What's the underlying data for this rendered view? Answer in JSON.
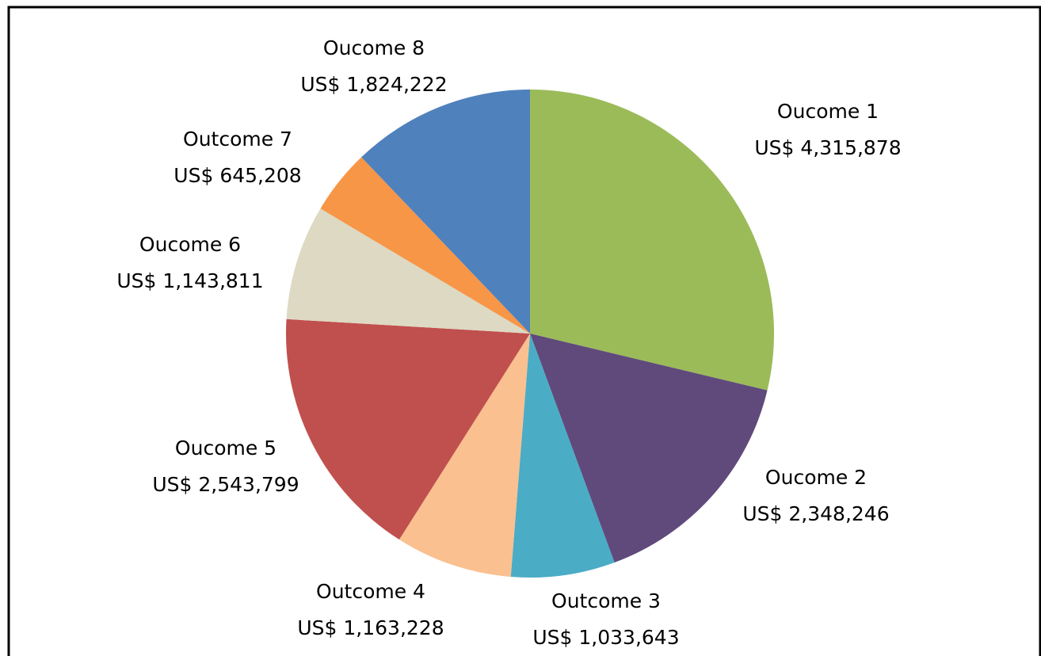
{
  "chart_data": {
    "type": "pie",
    "categories": [
      "Oucome 1",
      "Oucome 2",
      "Outcome 3",
      "Outcome 4",
      "Oucome 5",
      "Oucome 6",
      "Outcome 7",
      "Oucome 8"
    ],
    "values": [
      4315878,
      2348246,
      1033643,
      1163228,
      2543799,
      1143811,
      645208,
      1824222
    ],
    "value_labels": [
      "US$ 4,315,878",
      "US$ 2,348,246",
      "US$ 1,033,643",
      "US$ 1,163,228",
      "US$ 2,543,799",
      "US$ 1,143,811",
      "US$ 645,208",
      "US$ 1,824,222"
    ],
    "colors": [
      "#9bbb59",
      "#604a7b",
      "#4bacc6",
      "#fac090",
      "#c0504d",
      "#ddd9c3",
      "#f79646",
      "#4f81bd"
    ]
  }
}
